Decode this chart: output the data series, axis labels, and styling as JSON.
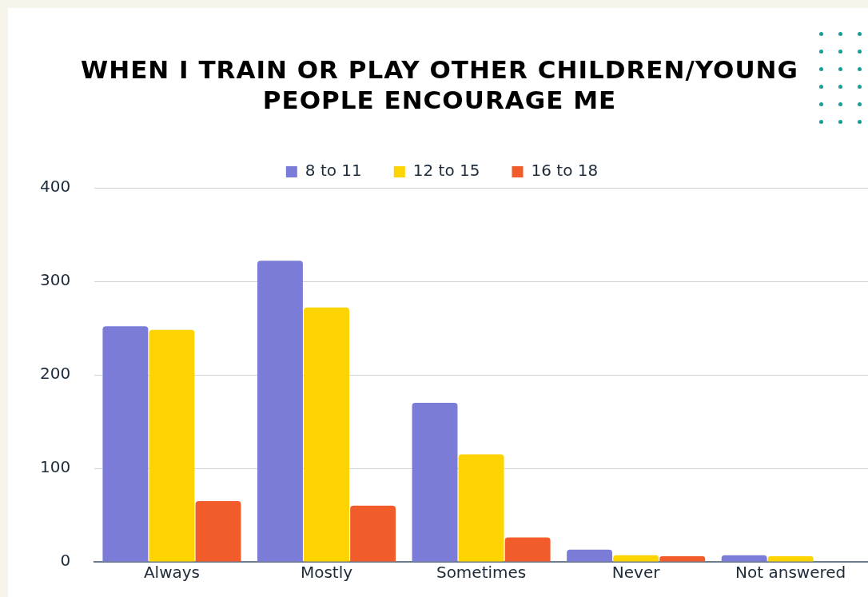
{
  "chart_data": {
    "type": "bar",
    "title": "WHEN I TRAIN OR PLAY OTHER CHILDREN/YOUNG PEOPLE ENCOURAGE ME",
    "categories": [
      "Always",
      "Mostly",
      "Sometimes",
      "Never",
      "Not answered"
    ],
    "series": [
      {
        "name": "8 to 11",
        "color": "#7b7bd8",
        "values": [
          252,
          322,
          170,
          13,
          7
        ]
      },
      {
        "name": "12 to 15",
        "color": "#fdd301",
        "values": [
          248,
          272,
          115,
          7,
          6
        ]
      },
      {
        "name": "16 to 18",
        "color": "#f25c2b",
        "values": [
          65,
          60,
          26,
          6,
          0
        ]
      }
    ],
    "ylim": [
      0,
      400
    ],
    "yticks": [
      0,
      100,
      200,
      300,
      400
    ],
    "grid": "y",
    "legend": "top"
  }
}
